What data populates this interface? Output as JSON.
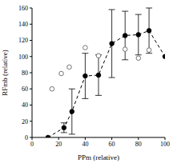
{
  "chart_data": {
    "type": "scatter",
    "x_label": "PPm (relative)",
    "y_label": "RFmb (relative)",
    "xlim": [
      0,
      100
    ],
    "xticks": [
      0,
      20,
      40,
      60,
      80,
      100
    ],
    "ylim": [
      0,
      160
    ],
    "yticks": [
      0,
      20,
      40,
      60,
      80,
      100,
      120,
      140,
      160
    ],
    "grid": false,
    "series": [
      {
        "x": [
          12,
          24,
          30,
          40,
          50,
          60,
          70,
          80,
          88,
          100
        ],
        "values": [
          0,
          12,
          32,
          76,
          77,
          116,
          126,
          127,
          132,
          100
        ],
        "error": [
          null,
          6,
          28,
          28,
          25,
          42,
          30,
          25,
          28,
          null
        ],
        "color": "#000000",
        "marker": "filled",
        "line_style": "dashed"
      },
      {
        "x": [
          15,
          22,
          28,
          40,
          50,
          70,
          80,
          88
        ],
        "values": [
          60,
          79,
          87,
          111,
          101,
          109,
          98,
          108
        ],
        "color": "#555555",
        "marker": "open"
      }
    ]
  }
}
